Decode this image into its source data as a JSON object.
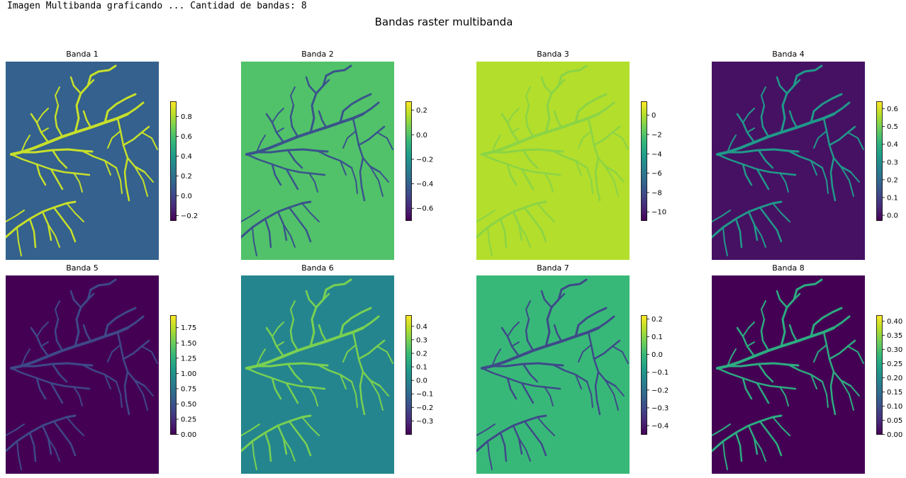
{
  "console_text": "Imagen Multibanda graficando ... Cantidad de bandas: 8",
  "chart_data": {
    "type": "heatmap",
    "title": "Bandas raster multibanda",
    "colormap": "viridis",
    "panels": [
      {
        "title": "Banda 1",
        "background_value": 0.12,
        "river_value": 0.85,
        "vmin": -0.25,
        "vmax": 0.95,
        "ticks": [
          -0.2,
          0.0,
          0.2,
          0.4,
          0.6,
          0.8
        ],
        "tick_labels": [
          "−0.2",
          "0.0",
          "0.2",
          "0.4",
          "0.6",
          "0.8"
        ]
      },
      {
        "title": "Banda 2",
        "background_value": 0.0,
        "river_value": -0.45,
        "vmin": -0.7,
        "vmax": 0.27,
        "ticks": [
          -0.6,
          -0.4,
          -0.2,
          0.0,
          0.2
        ],
        "tick_labels": [
          "−0.6",
          "−0.4",
          "−0.2",
          "0.0",
          "0.2"
        ]
      },
      {
        "title": "Banda 3",
        "background_value": 0.0,
        "river_value": -0.8,
        "vmin": -10.9,
        "vmax": 1.4,
        "ticks": [
          -10,
          -8,
          -6,
          -4,
          -2,
          0
        ],
        "tick_labels": [
          "−10",
          "−8",
          "−6",
          "−4",
          "−2",
          "0"
        ]
      },
      {
        "title": "Banda 4",
        "background_value": 0.0,
        "river_value": 0.33,
        "vmin": -0.03,
        "vmax": 0.64,
        "ticks": [
          0.0,
          0.1,
          0.2,
          0.3,
          0.4,
          0.5,
          0.6
        ],
        "tick_labels": [
          "0.0",
          "0.1",
          "0.2",
          "0.3",
          "0.4",
          "0.5",
          "0.6"
        ]
      },
      {
        "title": "Banda 5",
        "background_value": 0.0,
        "river_value": 0.42,
        "vmin": 0.0,
        "vmax": 1.95,
        "ticks": [
          0.0,
          0.25,
          0.5,
          0.75,
          1.0,
          1.25,
          1.5,
          1.75
        ],
        "tick_labels": [
          "0.00",
          "0.25",
          "0.50",
          "0.75",
          "1.00",
          "1.25",
          "1.50",
          "1.75"
        ]
      },
      {
        "title": "Banda 6",
        "background_value": 0.0,
        "river_value": 0.3,
        "vmin": -0.4,
        "vmax": 0.48,
        "ticks": [
          -0.3,
          -0.2,
          -0.1,
          0.0,
          0.1,
          0.2,
          0.3,
          0.4
        ],
        "tick_labels": [
          "−0.3",
          "−0.2",
          "−0.1",
          "0.0",
          "0.1",
          "0.2",
          "0.3",
          "0.4"
        ]
      },
      {
        "title": "Banda 7",
        "background_value": 0.0,
        "river_value": -0.3,
        "vmin": -0.45,
        "vmax": 0.22,
        "ticks": [
          -0.4,
          -0.3,
          -0.2,
          -0.1,
          0.0,
          0.1,
          0.2
        ],
        "tick_labels": [
          "−0.4",
          "−0.3",
          "−0.2",
          "−0.1",
          "0.0",
          "0.1",
          "0.2"
        ]
      },
      {
        "title": "Banda 8",
        "background_value": 0.0,
        "river_value": 0.26,
        "vmin": 0.0,
        "vmax": 0.42,
        "ticks": [
          0.0,
          0.05,
          0.1,
          0.15,
          0.2,
          0.25,
          0.3,
          0.35,
          0.4
        ],
        "tick_labels": [
          "0.00",
          "0.05",
          "0.10",
          "0.15",
          "0.20",
          "0.25",
          "0.30",
          "0.35",
          "0.40"
        ]
      }
    ]
  }
}
